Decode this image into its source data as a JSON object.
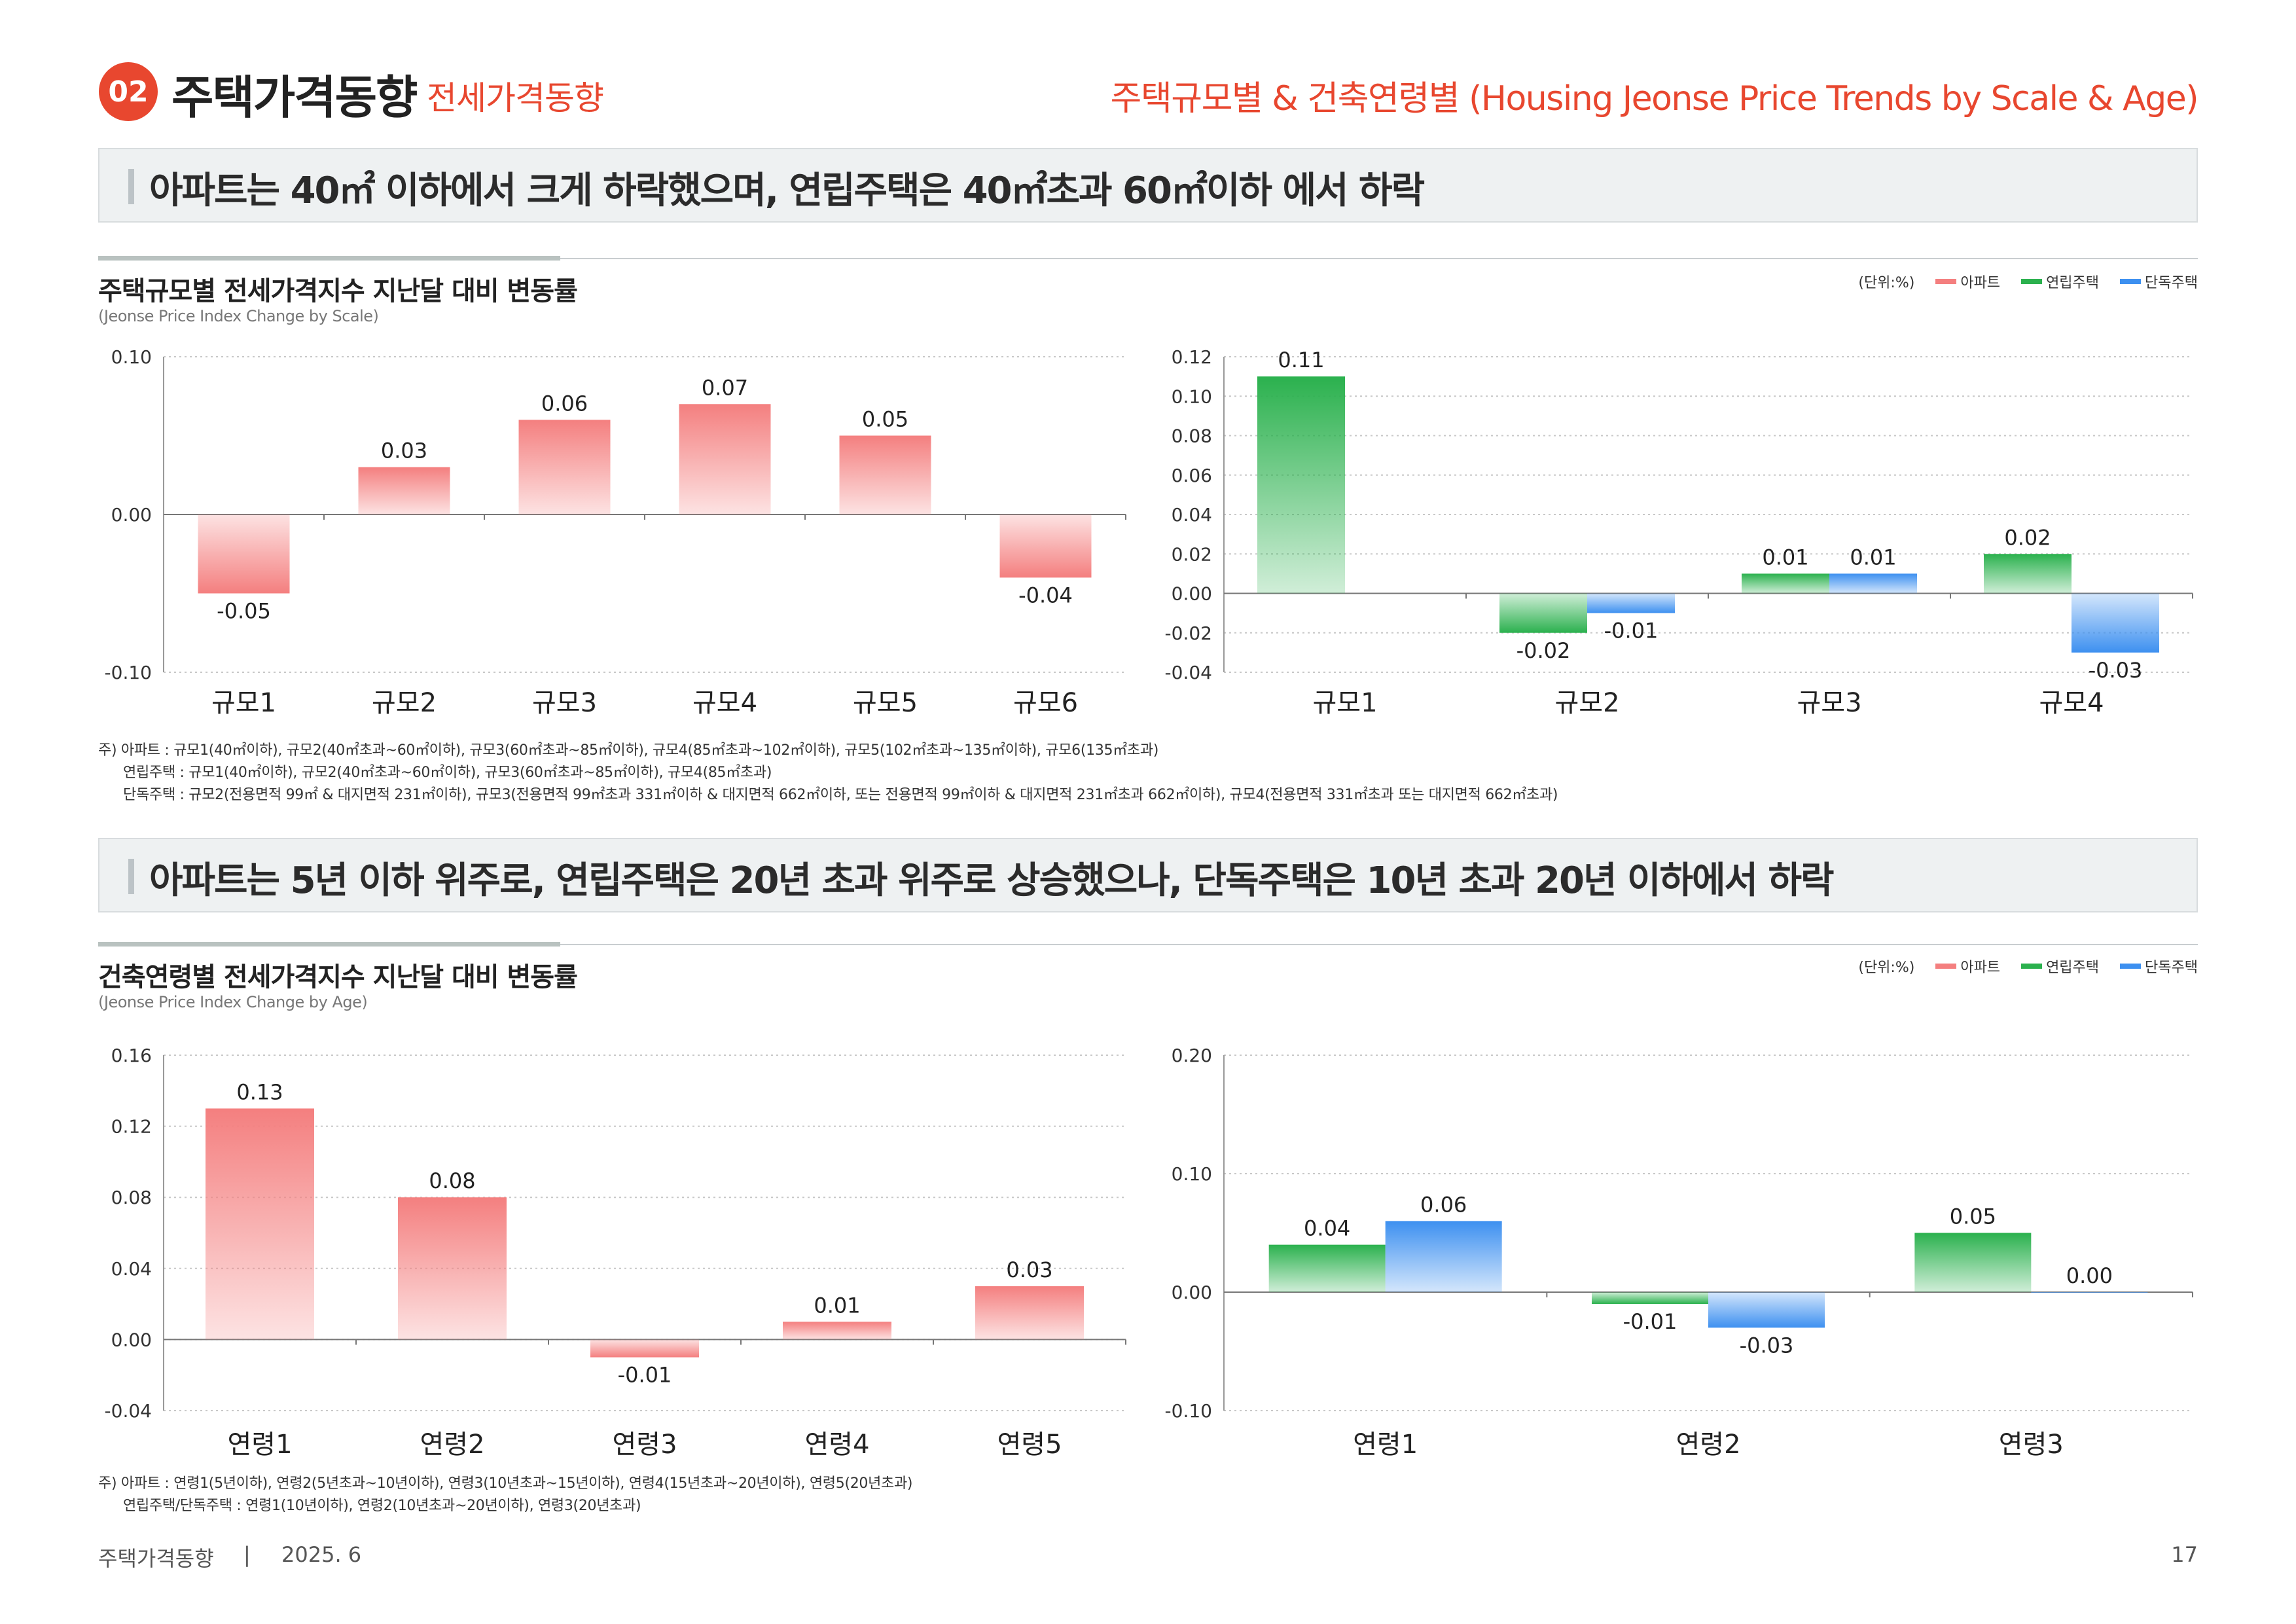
{
  "header": {
    "badge": "02",
    "title": "주택가격동향",
    "subtitle": "전세가격동향",
    "right_title": "주택규모별 & 건축연령별 (Housing Jeonse Price Trends by Scale & Age)"
  },
  "section1": {
    "banner": "아파트는 40㎡ 이하에서 크게 하락했으며, 연립주택은 40㎡초과 60㎡이하 에서 하락",
    "title": "주택규모별 전세가격지수 지난달 대비 변동률",
    "subtitle": "(Jeonse Price Index Change by Scale)",
    "legend": {
      "unit": "(단위:%)",
      "apt": "아파트",
      "row": "연립주택",
      "det": "단독주택"
    },
    "notes": [
      "주) 아파트 : 규모1(40㎡이하), 규모2(40㎡초과~60㎡이하), 규모3(60㎡초과~85㎡이하), 규모4(85㎡초과~102㎡이하), 규모5(102㎡초과~135㎡이하), 규모6(135㎡초과)",
      "연립주택 : 규모1(40㎡이하), 규모2(40㎡초과~60㎡이하), 규모3(60㎡초과~85㎡이하), 규모4(85㎡초과)",
      "단독주택 : 규모2(전용면적 99㎡ & 대지면적 231㎡이하), 규모3(전용면적 99㎡초과 331㎡이하 & 대지면적 662㎡이하, 또는 전용면적 99㎡이하 & 대지면적 231㎡초과 662㎡이하), 규모4(전용면적 331㎡초과 또는 대지면적 662㎡초과)"
    ]
  },
  "section2": {
    "banner": "아파트는 5년 이하 위주로, 연립주택은 20년 초과 위주로 상승했으나, 단독주택은 10년 초과 20년 이하에서 하락",
    "title": "건축연령별 전세가격지수 지난달 대비 변동률",
    "subtitle": "(Jeonse Price Index Change by Age)",
    "legend": {
      "unit": "(단위:%)",
      "apt": "아파트",
      "row": "연립주택",
      "det": "단독주택"
    },
    "notes": [
      "주) 아파트 : 연령1(5년이하), 연령2(5년초과~10년이하), 연령3(10년초과~15년이하), 연령4(15년초과~20년이하), 연령5(20년초과)",
      "연립주택/단독주택 : 연령1(10년이하), 연령2(10년초과~20년이하), 연령3(20년초과)"
    ]
  },
  "colors": {
    "accent": "#e8472f",
    "apt": "#f47f7f",
    "row": "#2bb14e",
    "det": "#3d90f0"
  },
  "chart_data": [
    {
      "id": "scale-apt",
      "type": "bar",
      "categories": [
        "규모1",
        "규모2",
        "규모3",
        "규모4",
        "규모5",
        "규모6"
      ],
      "series": [
        {
          "name": "아파트",
          "values": [
            -0.05,
            0.03,
            0.06,
            0.07,
            0.05,
            -0.04
          ]
        }
      ],
      "ylim": [
        -0.1,
        0.1
      ],
      "yticks": [
        "-0.10",
        "0.00",
        "0.10"
      ],
      "labels": [
        [
          "-0.05",
          "0.03",
          "0.06",
          "0.07",
          "0.05",
          "-0.04"
        ]
      ]
    },
    {
      "id": "scale-row-det",
      "type": "bar",
      "categories": [
        "규모1",
        "규모2",
        "규모3",
        "규모4"
      ],
      "series": [
        {
          "name": "연립주택",
          "values": [
            0.11,
            -0.02,
            0.01,
            0.02
          ]
        },
        {
          "name": "단독주택",
          "values": [
            null,
            -0.01,
            0.01,
            -0.03
          ]
        }
      ],
      "ylim": [
        -0.04,
        0.12
      ],
      "yticks": [
        "-0.04",
        "-0.02",
        "0.00",
        "0.02",
        "0.04",
        "0.06",
        "0.08",
        "0.10",
        "0.12"
      ],
      "labels": [
        [
          "0.11",
          "-0.02",
          "0.01",
          "0.02"
        ],
        [
          null,
          "-0.01",
          "0.01",
          "-0.03"
        ]
      ]
    },
    {
      "id": "age-apt",
      "type": "bar",
      "categories": [
        "연령1",
        "연령2",
        "연령3",
        "연령4",
        "연령5"
      ],
      "series": [
        {
          "name": "아파트",
          "values": [
            0.13,
            0.08,
            -0.01,
            0.01,
            0.03
          ]
        }
      ],
      "ylim": [
        -0.04,
        0.16
      ],
      "yticks": [
        "-0.04",
        "0.00",
        "0.04",
        "0.08",
        "0.12",
        "0.16"
      ],
      "labels": [
        [
          "0.13",
          "0.08",
          "-0.01",
          "0.01",
          "0.03"
        ]
      ]
    },
    {
      "id": "age-row-det",
      "type": "bar",
      "categories": [
        "연령1",
        "연령2",
        "연령3"
      ],
      "series": [
        {
          "name": "연립주택",
          "values": [
            0.04,
            -0.01,
            0.05
          ]
        },
        {
          "name": "단독주택",
          "values": [
            0.06,
            -0.03,
            0.0
          ]
        }
      ],
      "ylim": [
        -0.1,
        0.2
      ],
      "yticks": [
        "-0.10",
        "0.00",
        "0.10",
        "0.20"
      ],
      "labels": [
        [
          "0.04",
          "-0.01",
          "0.05"
        ],
        [
          "0.06",
          "-0.03",
          "0.00"
        ]
      ]
    }
  ],
  "footer": {
    "left": "주택가격동향",
    "divider": "|",
    "date": "2025. 6",
    "page": "17"
  }
}
